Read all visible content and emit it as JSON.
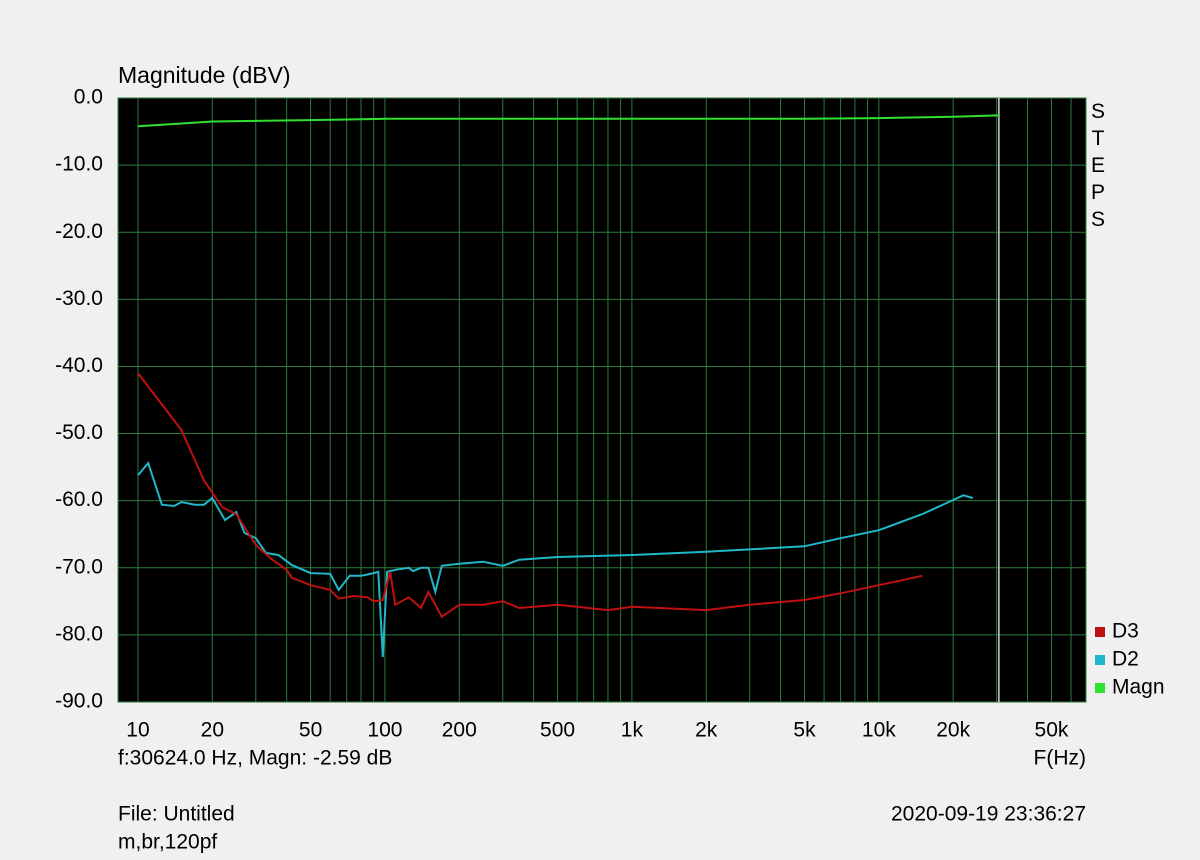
{
  "chart_data": {
    "type": "line",
    "title": "Magnitude (dBV)",
    "x_label": "F(Hz)",
    "side_label": "STEPS",
    "cursor_text": "f:30624.0 Hz, Magn: -2.59 dB",
    "cursor_x": 30624,
    "file_text": "File: Untitled",
    "timestamp": "2020-09-19 23:36:27",
    "note": "m,br,120pf",
    "log_x": true,
    "grid": true,
    "legend_position": "bottom-right",
    "xlim": [
      8.3,
      69000
    ],
    "ylim": [
      -90,
      0
    ],
    "yticks": [
      {
        "value": 0,
        "label": "0.0"
      },
      {
        "value": -10,
        "label": "-10.0"
      },
      {
        "value": -20,
        "label": "-20.0"
      },
      {
        "value": -30,
        "label": "-30.0"
      },
      {
        "value": -40,
        "label": "-40.0"
      },
      {
        "value": -50,
        "label": "-50.0"
      },
      {
        "value": -60,
        "label": "-60.0"
      },
      {
        "value": -70,
        "label": "-70.0"
      },
      {
        "value": -80,
        "label": "-80.0"
      },
      {
        "value": -90,
        "label": "-90.0"
      }
    ],
    "xticks": [
      10,
      20,
      50,
      100,
      200,
      500,
      {
        "value": 1000,
        "label": "1k"
      },
      {
        "value": 2000,
        "label": "2k"
      },
      {
        "value": 5000,
        "label": "5k"
      },
      {
        "value": 10000,
        "label": "10k"
      },
      {
        "value": 20000,
        "label": "20k"
      },
      {
        "value": 50000,
        "label": "50k"
      }
    ],
    "x_minor_grid": [
      30,
      40,
      60,
      70,
      80,
      90,
      300,
      400,
      600,
      700,
      800,
      900,
      3000,
      4000,
      6000,
      7000,
      8000,
      9000,
      30000,
      40000,
      60000
    ],
    "series": [
      {
        "name": "D3",
        "color": "#c01010",
        "x": [
          10,
          15,
          18.5,
          22,
          25,
          30,
          35,
          40,
          42,
          50,
          60,
          65,
          75,
          85,
          90,
          98,
          105,
          110,
          125,
          140,
          150,
          170,
          200,
          250,
          300,
          350,
          500,
          800,
          1000,
          2000,
          3000,
          5000,
          7000,
          10000,
          15000
        ],
        "values": [
          -41,
          -49.5,
          -57,
          -61,
          -62,
          -66.6,
          -68.8,
          -70.3,
          -71.5,
          -72.6,
          -73.3,
          -74.6,
          -74.2,
          -74.4,
          -75,
          -74.8,
          -70.6,
          -75.5,
          -74.4,
          -76,
          -73.6,
          -77.3,
          -75.5,
          -75.5,
          -75,
          -76,
          -75.5,
          -76.3,
          -75.8,
          -76.3,
          -75.5,
          -74.8,
          -73.8,
          -72.6,
          -71.2
        ]
      },
      {
        "name": "D2",
        "color": "#20b8c8",
        "x": [
          10,
          11,
          12.5,
          14,
          15,
          17,
          18.5,
          20,
          22.5,
          25,
          27,
          30,
          33,
          37,
          42,
          50,
          60,
          65,
          72,
          80,
          85,
          90,
          94,
          98,
          102,
          110,
          125,
          130,
          140,
          150,
          160,
          170,
          200,
          250,
          300,
          350,
          500,
          1000,
          2000,
          5000,
          7000,
          10000,
          15000,
          20000,
          22000,
          24000
        ],
        "values": [
          -56.2,
          -54.4,
          -60.6,
          -60.8,
          -60.2,
          -60.6,
          -60.6,
          -59.6,
          -62.9,
          -61.7,
          -64.8,
          -65.6,
          -67.8,
          -68.1,
          -69.6,
          -70.8,
          -70.9,
          -73.3,
          -71.2,
          -71.2,
          -71,
          -70.8,
          -70.6,
          -83.3,
          -70.6,
          -70.3,
          -70,
          -70.5,
          -70,
          -70,
          -73.6,
          -69.7,
          -69.4,
          -69.1,
          -69.7,
          -68.8,
          -68.4,
          -68.1,
          -67.6,
          -66.8,
          -65.6,
          -64.4,
          -62,
          -59.9,
          -59.2,
          -59.6
        ]
      },
      {
        "name": "Magn",
        "color": "#30e030",
        "x": [
          10,
          15,
          20,
          50,
          100,
          1000,
          5000,
          10000,
          20000,
          30624
        ],
        "values": [
          -4.2,
          -3.8,
          -3.5,
          -3.3,
          -3.1,
          -3.1,
          -3.1,
          -3.0,
          -2.8,
          -2.59
        ]
      }
    ]
  }
}
